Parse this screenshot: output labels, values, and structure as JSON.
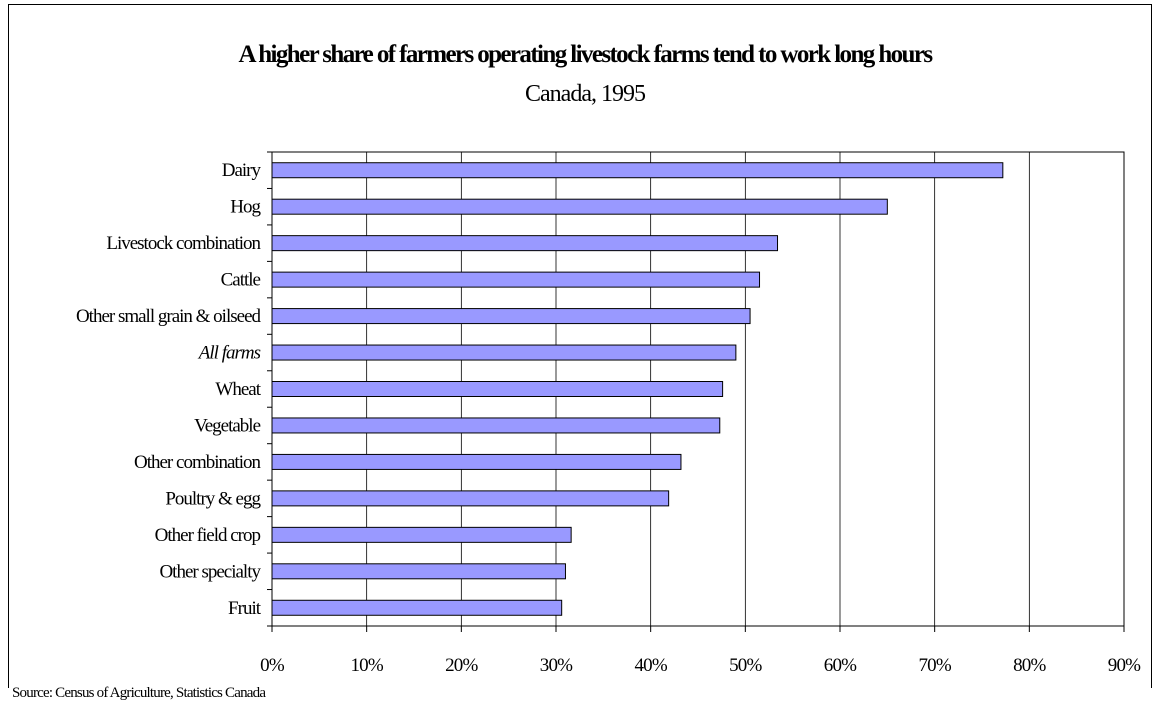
{
  "chart_data": {
    "type": "bar",
    "orientation": "horizontal",
    "title": "A higher share of farmers operating livestock farms tend to work long hours",
    "subtitle": "Canada, 1995",
    "xlabel": "",
    "ylabel": "",
    "categories": [
      "Dairy",
      "Hog",
      "Livestock combination",
      "Cattle",
      "Other small grain & oilseed",
      "All farms",
      "Wheat",
      "Vegetable",
      "Other combination",
      "Poultry & egg",
      "Other field crop",
      "Other specialty",
      "Fruit"
    ],
    "italic_categories": [
      "All farms"
    ],
    "values": [
      77.2,
      65.0,
      53.4,
      51.5,
      50.5,
      49.0,
      47.6,
      47.3,
      43.2,
      41.9,
      31.6,
      31.0,
      30.6
    ],
    "xlim": [
      0,
      90
    ],
    "x_ticks": [
      0,
      10,
      20,
      30,
      40,
      50,
      60,
      70,
      80,
      90
    ],
    "x_tick_labels": [
      "0%",
      "10%",
      "20%",
      "30%",
      "40%",
      "50%",
      "60%",
      "70%",
      "80%",
      "90%"
    ],
    "grid": "vertical",
    "legend": "none",
    "bar_color": "#9999ff",
    "bar_border_color": "#000000",
    "source": "Source: Census of Agriculture, Statistics Canada"
  }
}
